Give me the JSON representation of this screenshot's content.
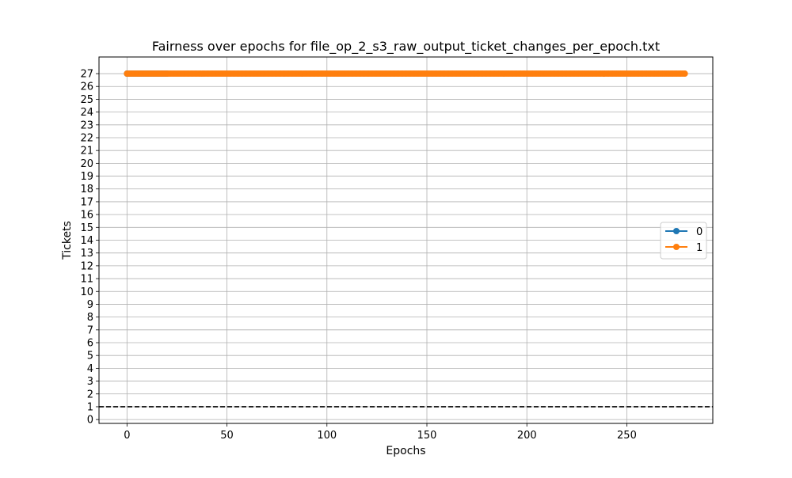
{
  "chart_data": {
    "type": "line",
    "title": "Fairness over epochs for file_op_2_s3_raw_output_ticket_changes_per_epoch.txt",
    "xlabel": "Epochs",
    "ylabel": "Tickets",
    "xlim": [
      -14,
      293
    ],
    "ylim": [
      -0.3,
      28.3
    ],
    "xticks": [
      0,
      50,
      100,
      150,
      200,
      250
    ],
    "yticks": [
      0,
      1,
      2,
      3,
      4,
      5,
      6,
      7,
      8,
      9,
      10,
      11,
      12,
      13,
      14,
      15,
      16,
      17,
      18,
      19,
      20,
      21,
      22,
      23,
      24,
      25,
      26,
      27
    ],
    "grid": true,
    "legend_position": "center-right",
    "series": [
      {
        "name": "0",
        "color": "#1f77b4",
        "x_start": 0,
        "x_end": 20,
        "x_step": 1,
        "value": 27
      },
      {
        "name": "1",
        "color": "#ff7f0e",
        "x_start": 0,
        "x_end": 279,
        "x_step": 1,
        "value": 27
      }
    ],
    "reference_line": {
      "y": 1,
      "style": "dashed",
      "color": "#000000"
    }
  }
}
